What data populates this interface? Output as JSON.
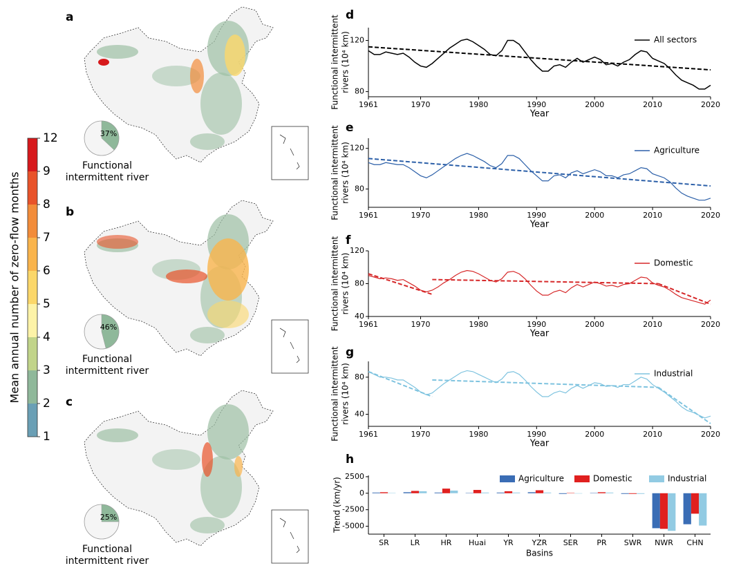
{
  "chart_data": [
    {
      "type": "colorbar",
      "label": "Mean annual number of zero-flow months",
      "boundaries": [
        1,
        2,
        3,
        4,
        5,
        6,
        7,
        8,
        9,
        12
      ],
      "colors": [
        "#6a9fb5",
        "#8fb89a",
        "#c1d48a",
        "#fdf3a8",
        "#fbd76a",
        "#f9b44c",
        "#f28c3a",
        "#e8532a",
        "#d7191c"
      ]
    },
    {
      "type": "pie",
      "panel": "a",
      "values": [
        37
      ],
      "value_labels": [
        "37%"
      ],
      "color": "#8fb89a",
      "caption": [
        "Functional",
        "intermittent river"
      ]
    },
    {
      "type": "pie",
      "panel": "b",
      "values": [
        46
      ],
      "value_labels": [
        "46%"
      ],
      "color": "#8fb89a",
      "caption": [
        "Functional",
        "intermittent river"
      ]
    },
    {
      "type": "pie",
      "panel": "c",
      "values": [
        25
      ],
      "value_labels": [
        "25%"
      ],
      "color": "#8fb89a",
      "caption": [
        "Functional",
        "intermittent river"
      ]
    },
    {
      "type": "line",
      "panel": "d",
      "xlabel": "Year",
      "ylabel": [
        "Functional intermittent",
        "rivers (10⁴ km)"
      ],
      "x": [
        1961,
        1962,
        1963,
        1964,
        1965,
        1966,
        1967,
        1968,
        1969,
        1970,
        1971,
        1972,
        1973,
        1974,
        1975,
        1976,
        1977,
        1978,
        1979,
        1980,
        1981,
        1982,
        1983,
        1984,
        1985,
        1986,
        1987,
        1988,
        1989,
        1990,
        1991,
        1992,
        1993,
        1994,
        1995,
        1996,
        1997,
        1998,
        1999,
        2000,
        2001,
        2002,
        2003,
        2004,
        2005,
        2006,
        2007,
        2008,
        2009,
        2010,
        2011,
        2012,
        2013,
        2014,
        2015,
        2016,
        2017,
        2018,
        2019,
        2020
      ],
      "series": [
        {
          "name": "All sectors",
          "color": "#000000",
          "values": [
            112,
            109,
            109,
            111,
            110,
            109,
            110,
            107,
            103,
            100,
            99,
            102,
            106,
            110,
            114,
            117,
            120,
            121,
            119,
            116,
            113,
            109,
            108,
            112,
            120,
            120,
            117,
            111,
            105,
            100,
            96,
            96,
            100,
            101,
            99,
            103,
            106,
            103,
            105,
            107,
            105,
            101,
            102,
            100,
            103,
            105,
            109,
            112,
            111,
            106,
            104,
            102,
            98,
            93,
            89,
            87,
            85,
            82,
            82,
            85
          ]
        }
      ],
      "trend": [
        {
          "x": [
            1961,
            2020
          ],
          "values": [
            115,
            97
          ]
        }
      ],
      "xlim": [
        1961,
        2020
      ],
      "xticks": [
        1961,
        1970,
        1980,
        1990,
        2000,
        2010,
        2020
      ],
      "ylim": [
        76,
        130
      ],
      "yticks": [
        80,
        120
      ]
    },
    {
      "type": "line",
      "panel": "e",
      "xlabel": "Year",
      "ylabel": [
        "Functional intermittent",
        "rivers (10⁴ km)"
      ],
      "x": [
        1961,
        1962,
        1963,
        1964,
        1965,
        1966,
        1967,
        1968,
        1969,
        1970,
        1971,
        1972,
        1973,
        1974,
        1975,
        1976,
        1977,
        1978,
        1979,
        1980,
        1981,
        1982,
        1983,
        1984,
        1985,
        1986,
        1987,
        1988,
        1989,
        1990,
        1991,
        1992,
        1993,
        1994,
        1995,
        1996,
        1997,
        1998,
        1999,
        2000,
        2001,
        2002,
        2003,
        2004,
        2005,
        2006,
        2007,
        2008,
        2009,
        2010,
        2011,
        2012,
        2013,
        2014,
        2015,
        2016,
        2017,
        2018,
        2019,
        2020
      ],
      "series": [
        {
          "name": "Agriculture",
          "color": "#2b5fa8",
          "values": [
            106,
            104,
            104,
            106,
            105,
            104,
            104,
            101,
            97,
            93,
            91,
            94,
            98,
            102,
            106,
            110,
            113,
            115,
            113,
            110,
            107,
            103,
            101,
            105,
            113,
            113,
            110,
            104,
            98,
            93,
            88,
            88,
            93,
            94,
            91,
            96,
            98,
            95,
            97,
            99,
            97,
            93,
            93,
            91,
            94,
            95,
            98,
            101,
            100,
            95,
            93,
            91,
            87,
            81,
            76,
            73,
            71,
            69,
            69,
            71
          ]
        }
      ],
      "trend": [
        {
          "x": [
            1961,
            2020
          ],
          "values": [
            110,
            83
          ]
        }
      ],
      "xlim": [
        1961,
        2020
      ],
      "xticks": [
        1961,
        1970,
        1980,
        1990,
        2000,
        2010,
        2020
      ],
      "ylim": [
        62,
        130
      ],
      "yticks": [
        80,
        120
      ]
    },
    {
      "type": "line",
      "panel": "f",
      "xlabel": "Year",
      "ylabel": [
        "Functional intermittent",
        "rivers (10⁴ km)"
      ],
      "x": [
        1961,
        1962,
        1963,
        1964,
        1965,
        1966,
        1967,
        1968,
        1969,
        1970,
        1971,
        1972,
        1973,
        1974,
        1975,
        1976,
        1977,
        1978,
        1979,
        1980,
        1981,
        1982,
        1983,
        1984,
        1985,
        1986,
        1987,
        1988,
        1989,
        1990,
        1991,
        1992,
        1993,
        1994,
        1995,
        1996,
        1997,
        1998,
        1999,
        2000,
        2001,
        2002,
        2003,
        2004,
        2005,
        2006,
        2007,
        2008,
        2009,
        2010,
        2011,
        2012,
        2013,
        2014,
        2015,
        2016,
        2017,
        2018,
        2019,
        2020
      ],
      "series": [
        {
          "name": "Domestic",
          "color": "#d62728",
          "values": [
            90,
            88,
            86,
            87,
            86,
            84,
            85,
            81,
            77,
            72,
            70,
            72,
            76,
            81,
            85,
            90,
            94,
            96,
            95,
            92,
            88,
            84,
            82,
            86,
            94,
            95,
            92,
            86,
            78,
            71,
            66,
            66,
            70,
            72,
            69,
            75,
            79,
            76,
            79,
            82,
            80,
            77,
            78,
            76,
            79,
            80,
            84,
            88,
            87,
            81,
            78,
            76,
            72,
            67,
            63,
            61,
            59,
            57,
            55,
            60
          ]
        }
      ],
      "trend": [
        {
          "x": [
            1961,
            1972
          ],
          "values": [
            92,
            67
          ]
        },
        {
          "x": [
            1972,
            2011
          ],
          "values": [
            85,
            80
          ]
        },
        {
          "x": [
            2011,
            2020
          ],
          "values": [
            80,
            55
          ]
        }
      ],
      "xlim": [
        1961,
        2020
      ],
      "xticks": [
        1961,
        1970,
        1980,
        1990,
        2000,
        2010,
        2020
      ],
      "ylim": [
        40,
        120
      ],
      "yticks": [
        40,
        80,
        120
      ]
    },
    {
      "type": "line",
      "panel": "g",
      "xlabel": "Year",
      "ylabel": [
        "Functional intermittent",
        "rivers (10⁴ km)"
      ],
      "x": [
        1961,
        1962,
        1963,
        1964,
        1965,
        1966,
        1967,
        1968,
        1969,
        1970,
        1971,
        1972,
        1973,
        1974,
        1975,
        1976,
        1977,
        1978,
        1979,
        1980,
        1981,
        1982,
        1983,
        1984,
        1985,
        1986,
        1987,
        1988,
        1989,
        1990,
        1991,
        1992,
        1993,
        1994,
        1995,
        1996,
        1997,
        1998,
        1999,
        2000,
        2001,
        2002,
        2003,
        2004,
        2005,
        2006,
        2007,
        2008,
        2009,
        2010,
        2011,
        2012,
        2013,
        2014,
        2015,
        2016,
        2017,
        2018,
        2019,
        2020
      ],
      "series": [
        {
          "name": "Industrial",
          "color": "#7ec3df",
          "values": [
            86,
            83,
            80,
            80,
            79,
            77,
            77,
            73,
            69,
            64,
            61,
            63,
            68,
            73,
            77,
            81,
            85,
            87,
            86,
            83,
            80,
            77,
            74,
            78,
            85,
            86,
            83,
            77,
            70,
            64,
            59,
            59,
            63,
            65,
            63,
            68,
            71,
            68,
            71,
            74,
            73,
            70,
            71,
            69,
            72,
            72,
            76,
            80,
            78,
            72,
            68,
            64,
            59,
            54,
            48,
            44,
            42,
            39,
            36,
            38
          ]
        }
      ],
      "trend": [
        {
          "x": [
            1961,
            1972
          ],
          "values": [
            86,
            59
          ]
        },
        {
          "x": [
            1972,
            2011
          ],
          "values": [
            77,
            69
          ]
        },
        {
          "x": [
            2011,
            2020
          ],
          "values": [
            69,
            30
          ]
        }
      ],
      "xlim": [
        1961,
        2020
      ],
      "xticks": [
        1961,
        1970,
        1980,
        1990,
        2000,
        2010,
        2020
      ],
      "ylim": [
        27,
        97
      ],
      "yticks": [
        40,
        80
      ]
    },
    {
      "type": "bar",
      "panel": "h",
      "xlabel": "Basins",
      "ylabel": "Trend (km/yr)",
      "categories": [
        "SR",
        "LR",
        "HR",
        "Huai",
        "YR",
        "YZR",
        "SER",
        "PR",
        "SWR",
        "NWR",
        "CHN"
      ],
      "series": [
        {
          "name": "Agriculture",
          "color": "#3a6db5",
          "values": [
            100,
            150,
            100,
            50,
            100,
            150,
            -100,
            50,
            -100,
            -5300,
            -4700
          ]
        },
        {
          "name": "Domestic",
          "color": "#e0201f",
          "values": [
            150,
            350,
            700,
            500,
            300,
            450,
            50,
            150,
            -100,
            -5400,
            -3100
          ]
        },
        {
          "name": "Industrial",
          "color": "#92cbe3",
          "values": [
            50,
            300,
            400,
            100,
            100,
            100,
            -50,
            100,
            -100,
            -5700,
            -4900
          ]
        }
      ],
      "ylim": [
        -6200,
        2700
      ],
      "yticks": [
        2500,
        0,
        -2500,
        -5000
      ]
    }
  ]
}
